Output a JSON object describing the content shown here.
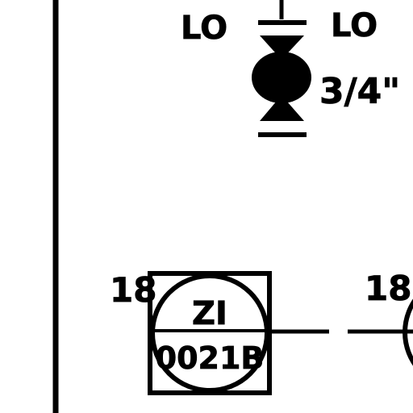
{
  "colors": {
    "line": "#000000",
    "background": "#ffffff"
  },
  "valve": {
    "left_tag": "LO",
    "right_tag": "LO",
    "size": "3/4\""
  },
  "instrument": {
    "left_number": "18",
    "function": "ZI",
    "loop": "0021B"
  },
  "right_instrument": {
    "number": "18"
  }
}
